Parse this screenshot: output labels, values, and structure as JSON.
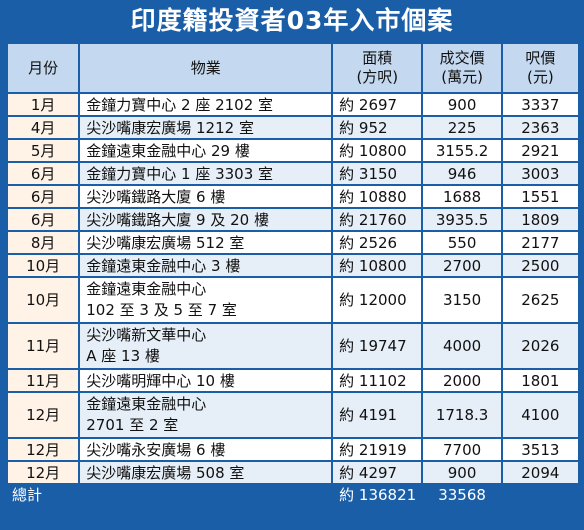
{
  "title": "印度籍投資者03年入市個案",
  "headers": {
    "month": "月份",
    "property": "物業",
    "area_line1": "面積",
    "area_line2": "(方呎)",
    "price_line1": "成交價",
    "price_line2": "(萬元)",
    "ppf_line1": "呎價",
    "ppf_line2": "(元)"
  },
  "rows": [
    {
      "month": "1月",
      "property": [
        "金鐘力寶中心 2 座 2102 室"
      ],
      "area": "約 2697",
      "price": "900",
      "ppf": "3337"
    },
    {
      "month": "4月",
      "property": [
        "尖沙嘴康宏廣場 1212 室"
      ],
      "area": "約 952",
      "price": "225",
      "ppf": "2363"
    },
    {
      "month": "5月",
      "property": [
        "金鐘遠東金融中心 29 樓"
      ],
      "area": "約 10800",
      "price": "3155.2",
      "ppf": "2921"
    },
    {
      "month": "6月",
      "property": [
        "金鐘力寶中心 1 座 3303 室"
      ],
      "area": "約 3150",
      "price": "946",
      "ppf": "3003"
    },
    {
      "month": "6月",
      "property": [
        "尖沙嘴鐵路大廈 6 樓"
      ],
      "area": "約 10880",
      "price": "1688",
      "ppf": "1551"
    },
    {
      "month": "6月",
      "property": [
        "尖沙嘴鐵路大廈 9 及 20 樓"
      ],
      "area": "約 21760",
      "price": "3935.5",
      "ppf": "1809"
    },
    {
      "month": "8月",
      "property": [
        "尖沙嘴康宏廣場 512 室"
      ],
      "area": "約 2526",
      "price": "550",
      "ppf": "2177"
    },
    {
      "month": "10月",
      "property": [
        "金鐘遠東金融中心 3 樓"
      ],
      "area": "約 10800",
      "price": "2700",
      "ppf": "2500"
    },
    {
      "month": "10月",
      "property": [
        "金鐘遠東金融中心",
        "102 至 3 及 5 至 7 室"
      ],
      "area": "約 12000",
      "price": "3150",
      "ppf": "2625"
    },
    {
      "month": "11月",
      "property": [
        "尖沙嘴新文華中心",
        "A 座 13 樓"
      ],
      "area": "約 19747",
      "price": "4000",
      "ppf": "2026"
    },
    {
      "month": "11月",
      "property": [
        "尖沙嘴明輝中心 10 樓"
      ],
      "area": "約 11102",
      "price": "2000",
      "ppf": "1801"
    },
    {
      "month": "12月",
      "property": [
        "金鐘遠東金融中心",
        "2701 至 2 室"
      ],
      "area": "約 4191",
      "price": "1718.3",
      "ppf": "4100"
    },
    {
      "month": "12月",
      "property": [
        "尖沙嘴永安廣場 6 樓"
      ],
      "area": "約 21919",
      "price": "7700",
      "ppf": "3513"
    },
    {
      "month": "12月",
      "property": [
        "尖沙嘴康宏廣場 508 室"
      ],
      "area": "約 4297",
      "price": "900",
      "ppf": "2094"
    }
  ],
  "total": {
    "label": "總計",
    "area": "約 136821",
    "price": "33568"
  }
}
